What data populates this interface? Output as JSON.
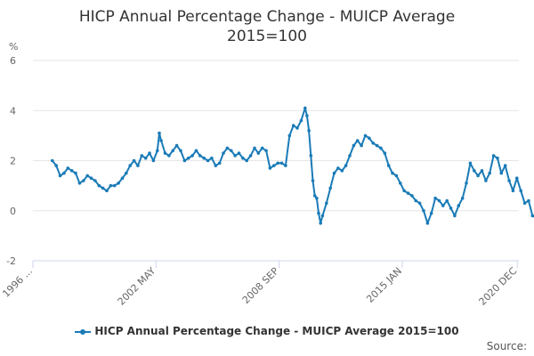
{
  "title": {
    "line1": "HICP Annual Percentage Change - MUICP Average",
    "line2": "2015=100"
  },
  "source_label": "Source:",
  "colors": {
    "series": "#1a7bb7",
    "grid": "#e6e6e6",
    "axis": "#ccd6eb",
    "text": "#333333"
  },
  "chart_data": {
    "type": "line",
    "title": "HICP Annual Percentage Change - MUICP Average 2015=100",
    "ylabel": "%",
    "ylim": [
      -2,
      6
    ],
    "yticks": [
      -2,
      0,
      2,
      4,
      6
    ],
    "xlim": [
      1996.0,
      2021.0
    ],
    "xticks": [
      {
        "label": "1996 ...",
        "x": 1996.0
      },
      {
        "label": "2002 MAY",
        "x": 2002.33
      },
      {
        "label": "2008 SEP",
        "x": 2008.67
      },
      {
        "label": "2015 JAN",
        "x": 2015.0
      },
      {
        "label": "2020 DEC",
        "x": 2020.92
      }
    ],
    "grid": true,
    "legend": "bottom",
    "series": [
      {
        "name": "HICP Annual Percentage Change - MUICP Average 2015=100",
        "points": [
          [
            1997.0,
            2.0
          ],
          [
            1997.2,
            1.8
          ],
          [
            1997.4,
            1.4
          ],
          [
            1997.6,
            1.5
          ],
          [
            1997.8,
            1.7
          ],
          [
            1998.0,
            1.6
          ],
          [
            1998.2,
            1.5
          ],
          [
            1998.4,
            1.1
          ],
          [
            1998.6,
            1.2
          ],
          [
            1998.8,
            1.4
          ],
          [
            1999.0,
            1.3
          ],
          [
            1999.2,
            1.2
          ],
          [
            1999.4,
            1.0
          ],
          [
            1999.6,
            0.9
          ],
          [
            1999.8,
            0.8
          ],
          [
            2000.0,
            1.0
          ],
          [
            2000.2,
            1.0
          ],
          [
            2000.4,
            1.1
          ],
          [
            2000.6,
            1.3
          ],
          [
            2000.8,
            1.5
          ],
          [
            2001.0,
            1.8
          ],
          [
            2001.2,
            2.0
          ],
          [
            2001.4,
            1.8
          ],
          [
            2001.6,
            2.2
          ],
          [
            2001.8,
            2.1
          ],
          [
            2002.0,
            2.3
          ],
          [
            2002.2,
            2.0
          ],
          [
            2002.4,
            2.4
          ],
          [
            2002.5,
            3.1
          ],
          [
            2002.6,
            2.8
          ],
          [
            2002.8,
            2.3
          ],
          [
            2003.0,
            2.2
          ],
          [
            2003.2,
            2.4
          ],
          [
            2003.4,
            2.6
          ],
          [
            2003.6,
            2.4
          ],
          [
            2003.8,
            2.0
          ],
          [
            2004.0,
            2.1
          ],
          [
            2004.2,
            2.2
          ],
          [
            2004.4,
            2.4
          ],
          [
            2004.6,
            2.2
          ],
          [
            2004.8,
            2.1
          ],
          [
            2005.0,
            2.0
          ],
          [
            2005.2,
            2.1
          ],
          [
            2005.4,
            1.8
          ],
          [
            2005.6,
            1.9
          ],
          [
            2005.8,
            2.3
          ],
          [
            2006.0,
            2.5
          ],
          [
            2006.2,
            2.4
          ],
          [
            2006.4,
            2.2
          ],
          [
            2006.6,
            2.3
          ],
          [
            2006.8,
            2.1
          ],
          [
            2007.0,
            2.0
          ],
          [
            2007.2,
            2.2
          ],
          [
            2007.4,
            2.5
          ],
          [
            2007.6,
            2.3
          ],
          [
            2007.8,
            2.5
          ],
          [
            2008.0,
            2.4
          ],
          [
            2008.2,
            1.7
          ],
          [
            2008.4,
            1.8
          ],
          [
            2008.6,
            1.9
          ],
          [
            2008.8,
            1.9
          ],
          [
            2009.0,
            1.8
          ],
          [
            2009.2,
            3.0
          ],
          [
            2009.4,
            3.4
          ],
          [
            2009.6,
            3.3
          ],
          [
            2009.8,
            3.6
          ],
          [
            2010.0,
            4.1
          ],
          [
            2010.1,
            3.8
          ],
          [
            2010.2,
            3.2
          ],
          [
            2010.3,
            2.2
          ],
          [
            2010.4,
            1.2
          ],
          [
            2010.5,
            0.6
          ],
          [
            2010.6,
            0.5
          ],
          [
            2010.7,
            -0.1
          ],
          [
            2010.8,
            -0.5
          ],
          [
            2010.9,
            -0.2
          ],
          [
            2011.1,
            0.3
          ],
          [
            2011.3,
            0.9
          ],
          [
            2011.5,
            1.5
          ],
          [
            2011.7,
            1.7
          ],
          [
            2011.9,
            1.6
          ],
          [
            2012.1,
            1.8
          ],
          [
            2012.3,
            2.2
          ],
          [
            2012.5,
            2.6
          ],
          [
            2012.7,
            2.8
          ],
          [
            2012.9,
            2.6
          ],
          [
            2013.1,
            3.0
          ],
          [
            2013.3,
            2.9
          ],
          [
            2013.5,
            2.7
          ],
          [
            2013.7,
            2.6
          ],
          [
            2013.9,
            2.5
          ],
          [
            2014.1,
            2.3
          ],
          [
            2014.3,
            1.8
          ],
          [
            2014.5,
            1.5
          ],
          [
            2014.7,
            1.4
          ],
          [
            2014.9,
            1.1
          ],
          [
            2015.1,
            0.8
          ],
          [
            2015.3,
            0.7
          ],
          [
            2015.5,
            0.6
          ],
          [
            2015.7,
            0.4
          ],
          [
            2015.9,
            0.3
          ],
          [
            2016.1,
            0.0
          ],
          [
            2016.3,
            -0.5
          ],
          [
            2016.5,
            -0.1
          ],
          [
            2016.7,
            0.5
          ],
          [
            2016.9,
            0.4
          ],
          [
            2017.1,
            0.2
          ],
          [
            2017.3,
            0.4
          ],
          [
            2017.5,
            0.1
          ],
          [
            2017.7,
            -0.2
          ],
          [
            2017.9,
            0.2
          ],
          [
            2018.1,
            0.5
          ],
          [
            2018.3,
            1.1
          ],
          [
            2018.5,
            1.9
          ],
          [
            2018.7,
            1.6
          ],
          [
            2018.9,
            1.4
          ],
          [
            2019.1,
            1.6
          ],
          [
            2019.3,
            1.2
          ],
          [
            2019.5,
            1.5
          ],
          [
            2019.7,
            2.2
          ],
          [
            2019.9,
            2.1
          ],
          [
            2020.1,
            1.5
          ],
          [
            2020.3,
            1.8
          ],
          [
            2020.5,
            1.2
          ],
          [
            2020.7,
            0.8
          ],
          [
            2020.9,
            1.3
          ],
          [
            2021.1,
            0.8
          ],
          [
            2021.3,
            0.3
          ],
          [
            2021.5,
            0.4
          ],
          [
            2021.7,
            -0.2
          ],
          [
            2021.9,
            -0.3
          ]
        ]
      }
    ]
  }
}
